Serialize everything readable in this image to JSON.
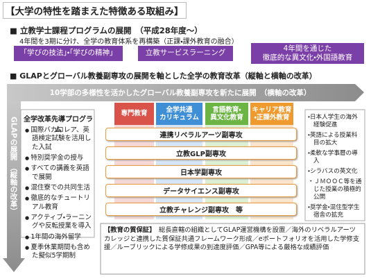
{
  "header": {
    "title": "【大学の特性を踏まえた特徴ある取組み】"
  },
  "section1": {
    "heading": "■ 立教学士課程プログラムの展開　（平成28年度～）",
    "note": "4年間を3期に分け、全学の教育体系を再構築（正課・課外教育の融合）",
    "boxes": [
      {
        "lines": [
          "「学びの技法」・「学びの精神」"
        ]
      },
      {
        "lines": [
          "立教サービスラーニング"
        ]
      },
      {
        "lines": [
          "4年間を通じた",
          "徹底的な異文化・外国語教育"
        ]
      }
    ]
  },
  "section2": {
    "heading": "■ GLAPとグローバル教養副専攻の展開を軸とした全学の教育改革（縦軸と横軸の改革）",
    "banner": "10学部の多様性を活かしたグローバル教養副専攻を新たに展開　（横軸の改革）",
    "vertical_arrow": "GLAPの展開　（縦軸の改革）",
    "left_panel": {
      "title": "全学改革先導プログラム",
      "items": [
        "国際バカロレア、英語検定試験を活用した入試",
        "特別奨学金の授与",
        "すべての講義を英語で展開",
        "混住寮での共同生活",
        "徹底的なチュートリアル教育",
        "アクティブ・ラーニングや反転授業を導入",
        "1年間の海外留学",
        "夏季休業期間も含めた擬似5学期制"
      ]
    },
    "columns": [
      {
        "lines": [
          "専門教育"
        ]
      },
      {
        "lines": [
          "全学共通",
          "カリキュラム"
        ]
      },
      {
        "lines": [
          "言語教育・",
          "異文化教育"
        ]
      },
      {
        "lines": [
          "キャリア教育",
          "・正課外教育"
        ]
      }
    ],
    "minors": [
      "連携リベラルアーツ副専攻",
      "立教GLP副専攻",
      "日本学副専攻",
      "データサイエンス副専攻",
      "立教チャレンジ副専攻　等"
    ],
    "right_panel": {
      "items": [
        "日本人学生の海外経験促進",
        "英語による授業科目の拡大",
        "柔軟な学事暦の導入",
        "シラバスの英文化",
        "ＪＭＯＯＣ等を通じた授業の積極的公開",
        "奨学金・混住型学生宿舎の拡充"
      ]
    },
    "quality": {
      "label": "【教育の質保証】",
      "body": "総長直轄の組織としてGLAP運営機構を設置／海外のリベラルアーツカレッジと連携した質保証共通フレームワーク形成／eポートフォリオを活用した学修支援／ルーブリックによる学修成果の到達度評価／GPA等による厳格な成績評価"
    }
  }
}
